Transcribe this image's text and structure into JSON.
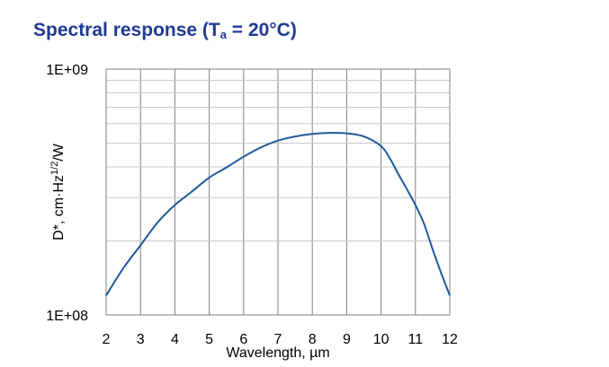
{
  "title": {
    "main": "Spectral response (T",
    "sub": "a",
    "rest": " = 20°C)"
  },
  "chart_data": {
    "type": "line",
    "xlabel": "Wavelength, µm",
    "ylabel": "D*, cm·Hz",
    "ylabel_sup": "1/2",
    "ylabel_tail": "/W",
    "xlim": [
      2,
      12
    ],
    "ylim": [
      100000000.0,
      1000000000.0
    ],
    "yscale": "log",
    "grid": true,
    "x_ticks": [
      "2",
      "3",
      "4",
      "5",
      "6",
      "7",
      "8",
      "9",
      "10",
      "11",
      "12"
    ],
    "y_ticks": [
      {
        "value": 100000000.0,
        "label": "1E+08"
      },
      {
        "value": 1000000000.0,
        "label": "1E+09"
      }
    ],
    "color": "#1f5a9e",
    "series": [
      {
        "x": [
          2,
          2.5,
          3,
          3.5,
          4,
          4.5,
          5,
          5.5,
          6,
          6.5,
          7,
          7.5,
          8,
          8.5,
          9,
          9.5,
          10,
          10.25,
          10.5,
          10.75,
          11,
          11.25,
          11.5,
          11.75,
          12
        ],
        "y": [
          120000000.0,
          155000000.0,
          192000000.0,
          238000000.0,
          280000000.0,
          318000000.0,
          362000000.0,
          398000000.0,
          440000000.0,
          480000000.0,
          512000000.0,
          532000000.0,
          545000000.0,
          550000000.0,
          548000000.0,
          532000000.0,
          486000000.0,
          435000000.0,
          375000000.0,
          325000000.0,
          280000000.0,
          235000000.0,
          185000000.0,
          148000000.0,
          120000000.0
        ]
      }
    ]
  }
}
